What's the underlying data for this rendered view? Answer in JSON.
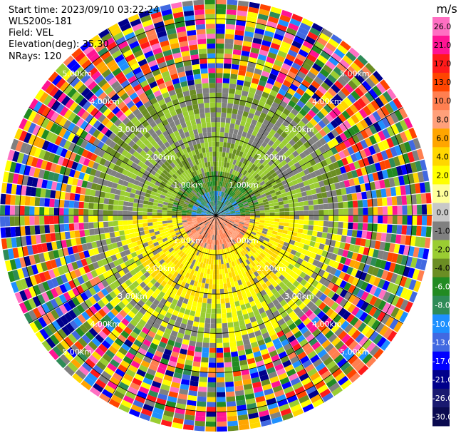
{
  "header": {
    "start_time": "Start time: 2023/09/10 03:22:24",
    "instrument": "WLS200s-181",
    "field": "Field: VEL",
    "elevation": "Elevation(deg): 35.30",
    "nrays": "NRays: 120"
  },
  "colorbar": {
    "unit": "m/s",
    "labels": [
      "26.0",
      "21.0",
      "17.0",
      "13.0",
      "10.0",
      "8.0",
      "6.0",
      "4.0",
      "2.0",
      "1.0",
      "0.0",
      "-1.0",
      "-2.0",
      "-4.0",
      "-6.0",
      "-8.0",
      "-10.0",
      "-13.0",
      "-17.0",
      "-21.0",
      "-26.0",
      "-30.0"
    ],
    "colors": [
      "#ff6fc2",
      "#ff1493",
      "#ff1a1a",
      "#ff4500",
      "#ff7f50",
      "#ffa07a",
      "#ffa500",
      "#ffd700",
      "#ffff00",
      "#ffff99",
      "#c8c8c8",
      "#808080",
      "#9acd32",
      "#6b8e23",
      "#228b22",
      "#2e8b57",
      "#1e90ff",
      "#4169e1",
      "#0000ff",
      "#00008b",
      "#191970",
      "#0a0a50"
    ]
  },
  "chart_data": {
    "type": "heatmap",
    "subtype": "polar-ppi",
    "field": "VEL",
    "unit": "m/s",
    "nrays": 120,
    "range_rings_km": [
      "1.00km",
      "2.00km",
      "3.00km",
      "4.00km",
      "5.00km"
    ],
    "max_range_km": 5.5,
    "spokes": 12,
    "value_profile_near_range": {
      "north_center": -10.0,
      "north_mid": -4.0,
      "south_center": 8.0,
      "south_mid": 2.0
    }
  }
}
